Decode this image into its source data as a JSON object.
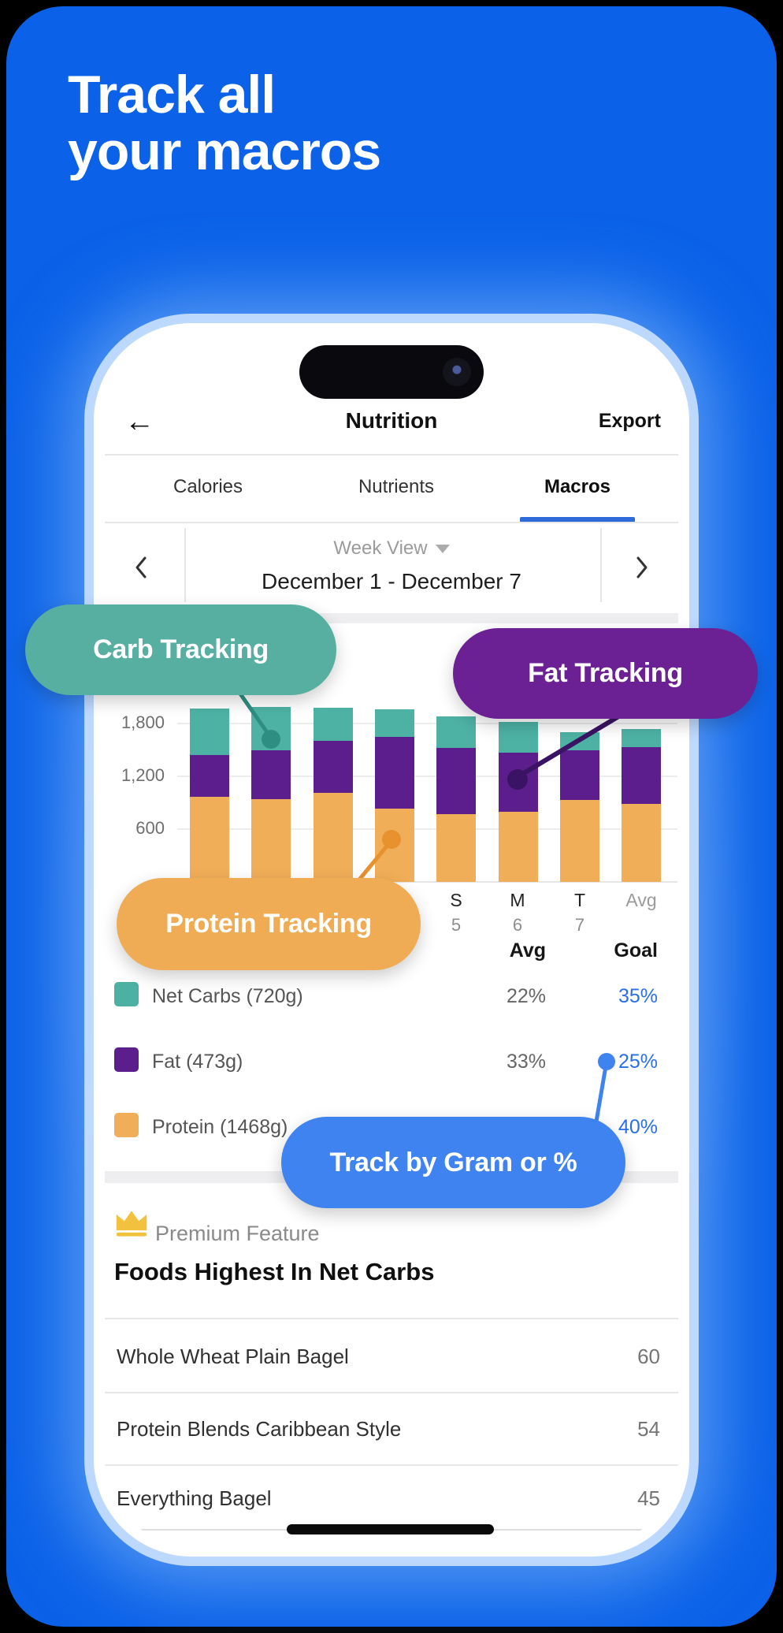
{
  "hero": {
    "line1": "Track all",
    "line2": "your macros"
  },
  "phone": {
    "nav": {
      "back_icon": "back-arrow",
      "title": "Nutrition",
      "export_label": "Export"
    },
    "tabs": [
      {
        "label": "Calories",
        "active": false
      },
      {
        "label": "Nutrients",
        "active": false
      },
      {
        "label": "Macros",
        "active": true
      }
    ],
    "week_selector": {
      "view_label": "Week View",
      "range": "December 1 - December 7"
    }
  },
  "chart_data": {
    "type": "bar",
    "stacked": true,
    "categories": [
      "",
      "",
      "",
      "",
      "S 5",
      "M 6",
      "T 7",
      "Avg"
    ],
    "series": [
      {
        "name": "Protein",
        "color": "#F1AE58",
        "values": [
          965,
          940,
          1010,
          835,
          770,
          795,
          930,
          885
        ]
      },
      {
        "name": "Fat",
        "color": "#5B1E8C",
        "values": [
          475,
          555,
          590,
          815,
          750,
          675,
          565,
          645
        ]
      },
      {
        "name": "Net Carbs",
        "color": "#4DB2A4",
        "values": [
          530,
          495,
          380,
          310,
          360,
          350,
          205,
          205
        ]
      }
    ],
    "ylim": [
      0,
      2050
    ],
    "yticks": [
      600,
      1200,
      1800
    ],
    "ytick_labels": [
      "600",
      "1,200",
      "1,800"
    ],
    "x_labels": [
      {
        "letter": "S",
        "num": "5"
      },
      {
        "letter": "M",
        "num": "6"
      },
      {
        "letter": "T",
        "num": "7"
      },
      {
        "letter": "Avg",
        "num": ""
      }
    ],
    "grid": true,
    "legend_position": "below"
  },
  "legend": {
    "headers": {
      "avg": "Avg",
      "goal": "Goal"
    },
    "rows": [
      {
        "name": "Net Carbs (720g)",
        "color": "#4CB0A3",
        "avg": "22%",
        "goal": "35%"
      },
      {
        "name": "Fat (473g)",
        "color": "#5B1E8C",
        "avg": "33%",
        "goal": "25%"
      },
      {
        "name": "Protein (1468g)",
        "color": "#F1AE58",
        "avg": "",
        "goal": "40%"
      }
    ]
  },
  "premium": {
    "label": "Premium Feature",
    "crown_icon": "crown",
    "crown_color": "#F2C13E"
  },
  "foods": {
    "heading": "Foods Highest In Net Carbs",
    "rows": [
      {
        "name": "Whole Wheat Plain Bagel",
        "value": "60"
      },
      {
        "name": "Protein Blends Caribbean Style",
        "value": "54"
      },
      {
        "name": "Everything Bagel",
        "value": "45"
      }
    ]
  },
  "callouts": [
    {
      "id": "carb",
      "label": "Carb Tracking",
      "color": "#57AFA2",
      "connector_color": "#2E8E81"
    },
    {
      "id": "fat",
      "label": "Fat Tracking",
      "color": "#6B2094",
      "connector_color": "#3A1364"
    },
    {
      "id": "protein",
      "label": "Protein Tracking",
      "color": "#EFAC55",
      "connector_color": "#E8912F"
    },
    {
      "id": "gram",
      "label": "Track by Gram or %",
      "color": "#3F83F1",
      "connector_color": "#3F83F1"
    }
  ],
  "theme": {
    "background_blue": "#0B62E8",
    "accent_blue": "#2D6BD8",
    "goal_blue": "#2A6FE8"
  }
}
